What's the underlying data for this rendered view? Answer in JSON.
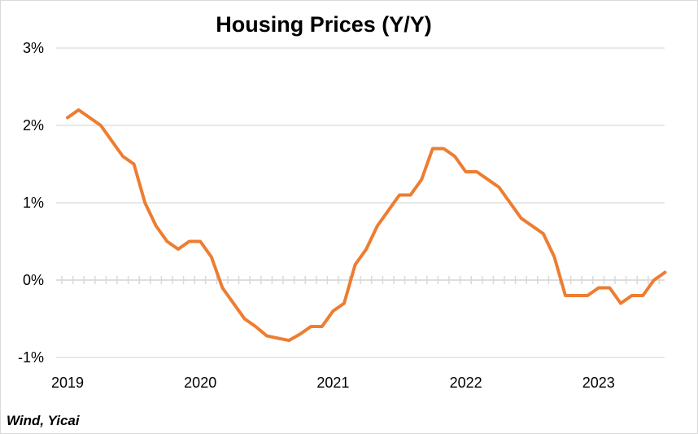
{
  "chart_data": {
    "type": "line",
    "title": "Housing Prices (Y/Y)",
    "xlabel": "",
    "ylabel": "",
    "ylim": [
      -1,
      3
    ],
    "y_ticks": [
      -1,
      0,
      1,
      2,
      3
    ],
    "y_tick_labels": [
      "-1%",
      "0%",
      "1%",
      "2%",
      "3%"
    ],
    "x_ticks": [
      "2019-01",
      "2020-01",
      "2021-01",
      "2022-01",
      "2023-01"
    ],
    "x_tick_labels": [
      "2019",
      "2020",
      "2021",
      "2022",
      "2023"
    ],
    "grid": true,
    "legend": "none",
    "series": [
      {
        "color": "#ed7d31",
        "x": [
          "2019-01",
          "2019-02",
          "2019-03",
          "2019-04",
          "2019-05",
          "2019-06",
          "2019-07",
          "2019-08",
          "2019-09",
          "2019-10",
          "2019-11",
          "2019-12",
          "2020-01",
          "2020-02",
          "2020-03",
          "2020-04",
          "2020-05",
          "2020-06",
          "2020-07",
          "2020-08",
          "2020-09",
          "2020-10",
          "2020-11",
          "2020-12",
          "2021-01",
          "2021-02",
          "2021-03",
          "2021-04",
          "2021-05",
          "2021-06",
          "2021-07",
          "2021-08",
          "2021-09",
          "2021-10",
          "2021-11",
          "2021-12",
          "2022-01",
          "2022-02",
          "2022-03",
          "2022-04",
          "2022-05",
          "2022-06",
          "2022-07",
          "2022-08",
          "2022-09",
          "2022-10",
          "2022-11",
          "2022-12",
          "2023-01",
          "2023-02",
          "2023-03",
          "2023-04",
          "2023-05",
          "2023-06",
          "2023-07"
        ],
        "values": [
          2.1,
          2.2,
          2.1,
          2.0,
          1.8,
          1.6,
          1.5,
          1.0,
          0.7,
          0.5,
          0.4,
          0.5,
          0.5,
          0.3,
          -0.1,
          -0.3,
          -0.5,
          -0.6,
          -0.72,
          -0.75,
          -0.78,
          -0.7,
          -0.6,
          -0.6,
          -0.4,
          -0.3,
          0.2,
          0.4,
          0.7,
          0.9,
          1.1,
          1.1,
          1.3,
          1.7,
          1.7,
          1.6,
          1.4,
          1.4,
          1.3,
          1.2,
          1.0,
          0.8,
          0.7,
          0.6,
          0.3,
          -0.2,
          -0.2,
          -0.2,
          -0.1,
          -0.1,
          -0.3,
          -0.2,
          -0.2,
          0.0,
          0.1
        ]
      }
    ]
  },
  "source": "Wind, Yicai"
}
